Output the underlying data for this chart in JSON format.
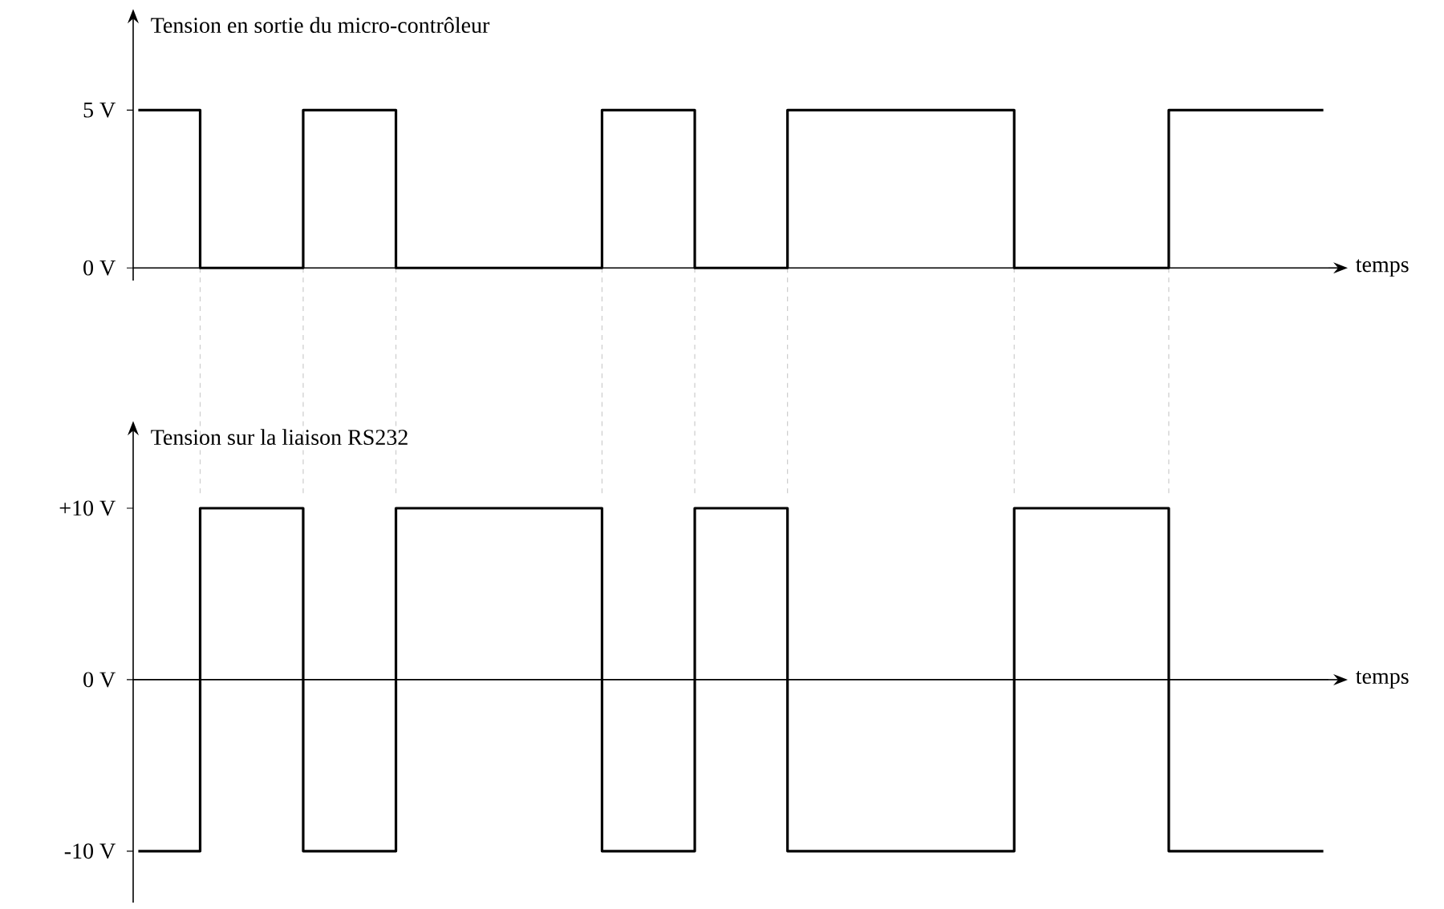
{
  "chart_data": [
    {
      "type": "step",
      "ylabel": "Tension en sortie du micro-contrôleur",
      "xlabel": "temps",
      "categories": [
        null,
        null,
        null,
        null,
        null,
        null,
        null,
        null,
        null,
        null,
        null,
        null,
        null,
        null,
        null,
        null,
        null,
        null,
        null,
        null,
        null,
        null,
        null,
        null,
        null,
        null,
        null,
        null,
        null,
        null,
        null,
        null,
        null,
        null,
        null,
        null,
        null,
        null,
        null,
        null,
        null,
        null,
        null,
        null,
        null,
        null,
        null,
        null,
        null,
        null,
        null,
        null,
        null,
        null,
        null,
        null,
        null,
        null,
        null,
        null,
        null,
        null,
        null,
        null,
        null,
        null,
        null,
        null,
        null,
        null,
        null,
        null,
        null,
        null,
        null,
        null,
        null,
        null,
        null,
        null,
        null,
        null,
        null,
        null,
        null,
        null,
        null,
        null,
        null,
        null,
        null,
        null,
        null,
        null,
        null,
        null,
        null,
        null,
        null,
        null,
        null,
        null,
        null,
        null,
        null,
        null,
        null,
        null,
        null,
        null,
        null,
        null,
        null,
        null,
        null,
        null
      ],
      "series": [
        {
          "color": "#000000",
          "values": [
            5,
            5,
            5,
            5,
            5,
            5,
            0,
            0,
            0,
            0,
            0,
            0,
            0,
            0,
            0,
            0,
            5,
            5,
            5,
            5,
            5,
            5,
            5,
            5,
            5,
            0,
            0,
            0,
            0,
            0,
            0,
            0,
            0,
            0,
            0,
            0,
            0,
            0,
            0,
            0,
            0,
            0,
            0,
            0,
            0,
            5,
            5,
            5,
            5,
            5,
            5,
            5,
            5,
            5,
            0,
            0,
            0,
            0,
            0,
            0,
            0,
            0,
            0,
            5,
            5,
            5,
            5,
            5,
            5,
            5,
            5,
            5,
            5,
            5,
            5,
            5,
            5,
            5,
            5,
            5,
            5,
            5,
            5,
            5,
            5,
            0,
            0,
            0,
            0,
            0,
            0,
            0,
            0,
            0,
            0,
            0,
            0,
            0,
            0,
            0,
            5,
            5,
            5,
            5,
            5,
            5,
            5,
            5,
            5,
            5,
            5,
            5,
            5,
            5,
            5,
            5
          ]
        }
      ],
      "ylim": [
        -0.4,
        8.1
      ],
      "yticks": [
        {
          "value": 0,
          "label": "0 V"
        },
        {
          "value": 5,
          "label": "5 V"
        }
      ],
      "tick_labels": "y",
      "marker": "none",
      "line_style": "solid"
    },
    {
      "type": "step",
      "ylabel": "Tension sur la liaison RS232",
      "xlabel": "temps",
      "categories": [
        null,
        null,
        null,
        null,
        null,
        null,
        null,
        null,
        null,
        null,
        null,
        null,
        null,
        null,
        null,
        null,
        null,
        null,
        null,
        null,
        null,
        null,
        null,
        null,
        null,
        null,
        null,
        null,
        null,
        null,
        null,
        null,
        null,
        null,
        null,
        null,
        null,
        null,
        null,
        null,
        null,
        null,
        null,
        null,
        null,
        null,
        null,
        null,
        null,
        null,
        null,
        null,
        null,
        null,
        null,
        null,
        null,
        null,
        null,
        null,
        null,
        null,
        null,
        null,
        null,
        null,
        null,
        null,
        null,
        null,
        null,
        null,
        null,
        null,
        null,
        null,
        null,
        null,
        null,
        null,
        null,
        null,
        null,
        null,
        null,
        null,
        null,
        null,
        null,
        null,
        null,
        null,
        null,
        null,
        null,
        null,
        null,
        null,
        null,
        null,
        null,
        null,
        null,
        null,
        null,
        null,
        null,
        null,
        null,
        null,
        null,
        null,
        null,
        null,
        null,
        null
      ],
      "series": [
        {
          "color": "#000000",
          "values": [
            -10,
            -10,
            -10,
            -10,
            -10,
            -10,
            10,
            10,
            10,
            10,
            10,
            10,
            10,
            10,
            10,
            10,
            -10,
            -10,
            -10,
            -10,
            -10,
            -10,
            -10,
            -10,
            -10,
            10,
            10,
            10,
            10,
            10,
            10,
            10,
            10,
            10,
            10,
            10,
            10,
            10,
            10,
            10,
            10,
            10,
            10,
            10,
            10,
            -10,
            -10,
            -10,
            -10,
            -10,
            -10,
            -10,
            -10,
            -10,
            10,
            10,
            10,
            10,
            10,
            10,
            10,
            10,
            10,
            -10,
            -10,
            -10,
            -10,
            -10,
            -10,
            -10,
            -10,
            -10,
            -10,
            -10,
            -10,
            -10,
            -10,
            -10,
            -10,
            -10,
            -10,
            -10,
            -10,
            -10,
            -10,
            10,
            10,
            10,
            10,
            10,
            10,
            10,
            10,
            10,
            10,
            10,
            10,
            10,
            10,
            10,
            -10,
            -10,
            -10,
            -10,
            -10,
            -10,
            -10,
            -10,
            -10,
            -10,
            -10,
            -10,
            -10,
            -10,
            -10,
            -10
          ]
        }
      ],
      "ylim": [
        -13.0,
        14.9
      ],
      "yticks": [
        {
          "value": -10,
          "label": "-10 V"
        },
        {
          "value": 0,
          "label": "0 V"
        },
        {
          "value": 10,
          "label": "+10 V"
        }
      ],
      "tick_labels": "y",
      "marker": "none",
      "line_style": "solid"
    }
  ]
}
